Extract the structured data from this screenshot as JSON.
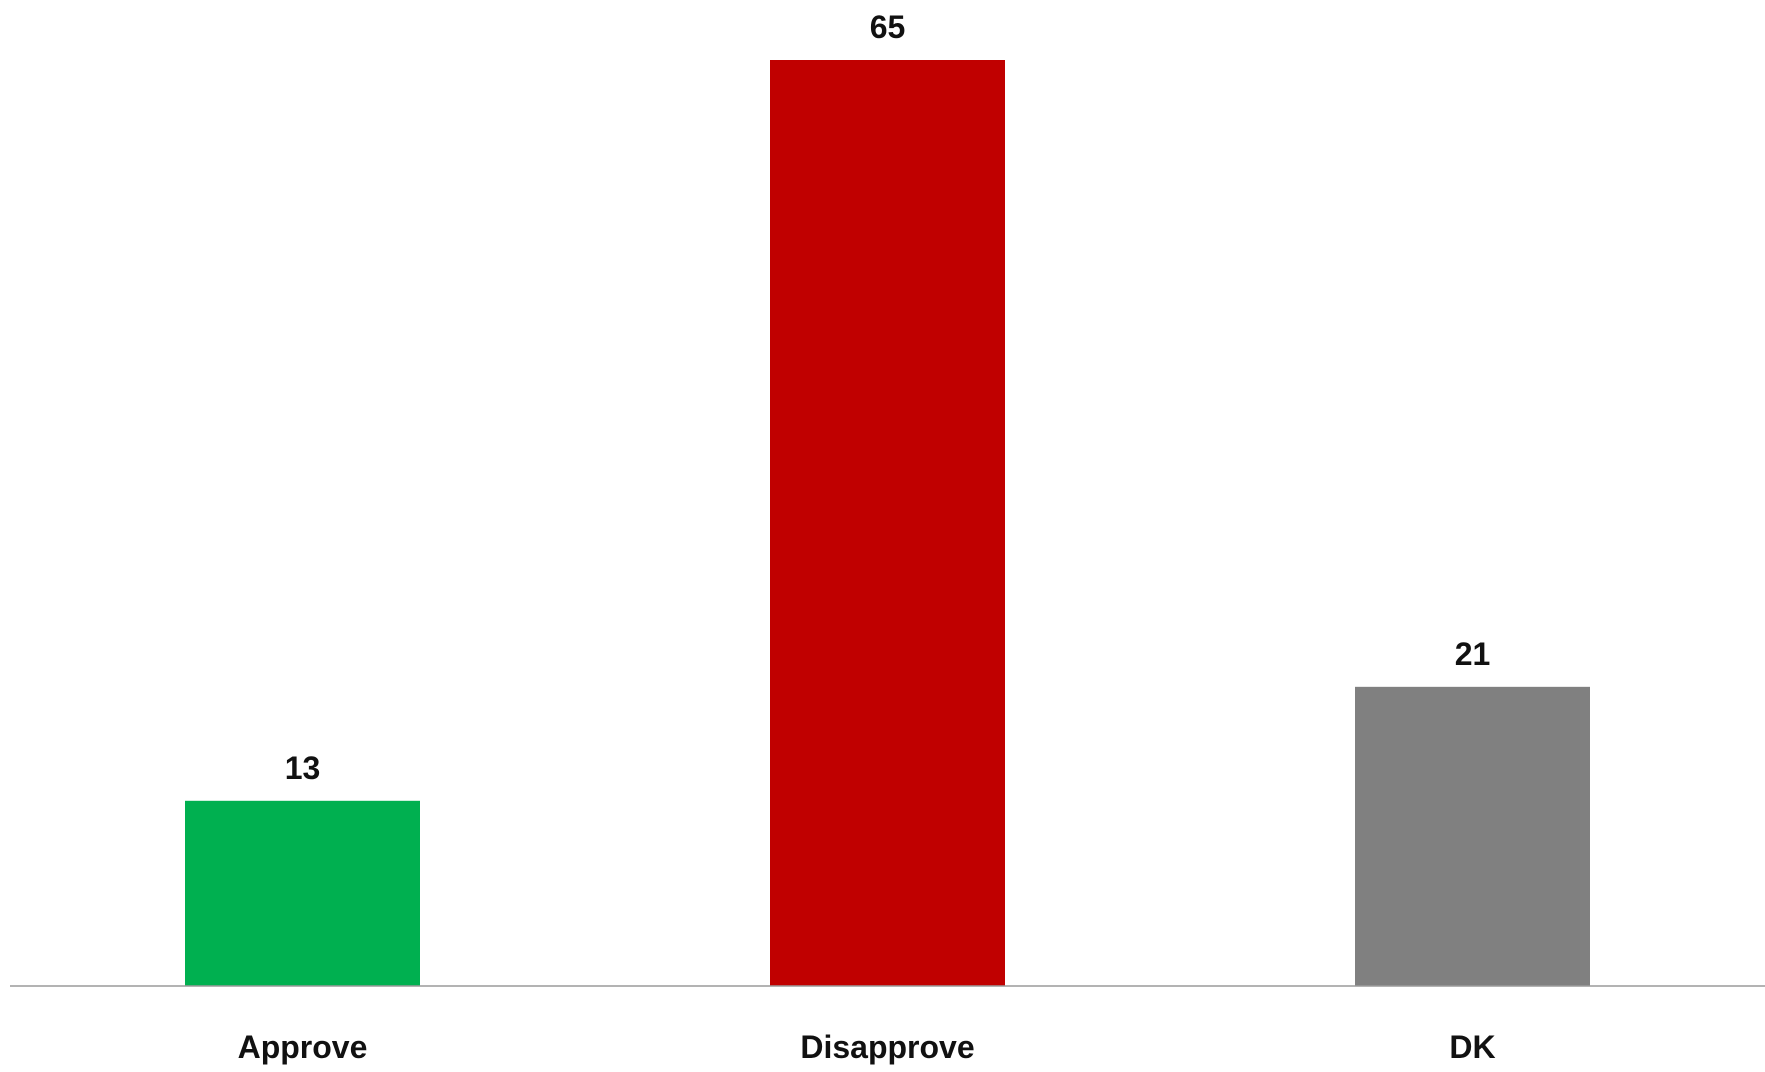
{
  "chart_data": {
    "type": "bar",
    "title": "",
    "xlabel": "",
    "ylabel": "",
    "categories": [
      "Approve",
      "Disapprove",
      "DK"
    ],
    "values": [
      13,
      65,
      21
    ],
    "data_labels": [
      "13",
      "65",
      "21"
    ],
    "colors": [
      "#00b050",
      "#c00000",
      "#808080"
    ],
    "ylim": [
      0,
      65
    ],
    "grid": false,
    "legend": "none",
    "y_axis_visible": false
  }
}
